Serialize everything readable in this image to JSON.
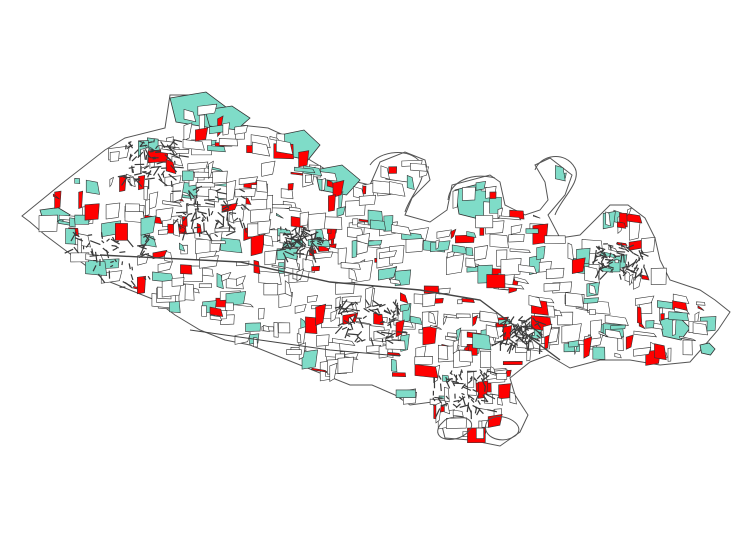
{
  "map": {
    "colors": {
      "background": "#ffffff",
      "parcel_fill_default": "#ffffff",
      "parcel_fill_category_a": "#ff0000",
      "parcel_fill_category_b": "#7fdcc8",
      "dense_area": "#3a3a3a",
      "stroke": "#333333",
      "boundary_stroke": "#555555"
    },
    "legend": [],
    "title": ""
  }
}
